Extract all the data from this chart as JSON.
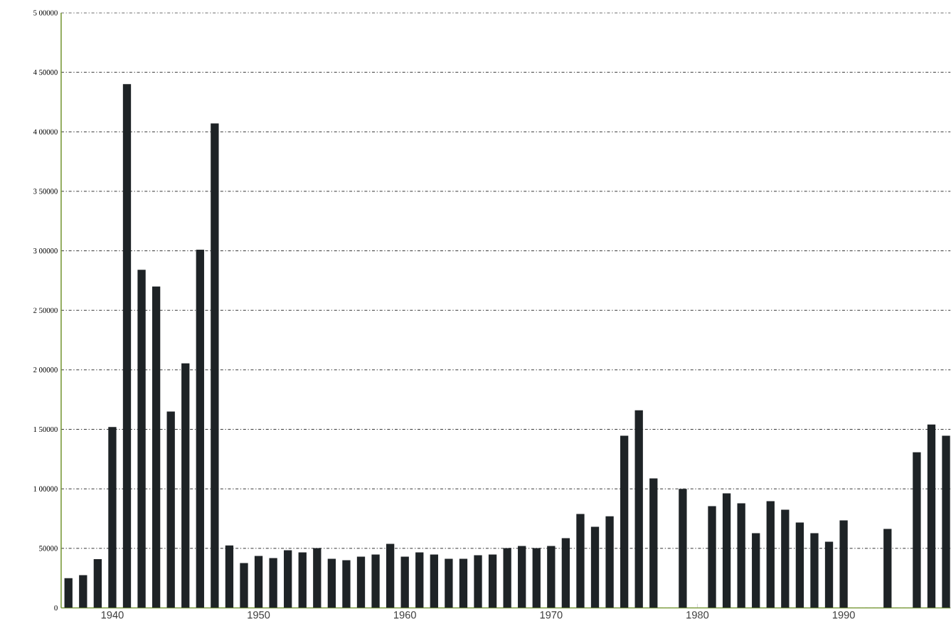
{
  "chart_data": {
    "type": "bar",
    "x": [
      1937,
      1938,
      1939,
      1940,
      1941,
      1942,
      1943,
      1944,
      1945,
      1946,
      1947,
      1948,
      1949,
      1950,
      1951,
      1952,
      1953,
      1954,
      1955,
      1956,
      1957,
      1958,
      1959,
      1960,
      1961,
      1962,
      1963,
      1964,
      1965,
      1966,
      1967,
      1968,
      1969,
      1970,
      1971,
      1972,
      1973,
      1974,
      1975,
      1976,
      1977,
      1978,
      1979,
      1980,
      1981,
      1982,
      1983,
      1984,
      1985,
      1986,
      1987,
      1988,
      1989,
      1990,
      1991,
      1992,
      1993,
      1994,
      1995,
      1996,
      1997
    ],
    "values": [
      25000,
      27500,
      41000,
      152000,
      440000,
      284000,
      270000,
      165000,
      205500,
      301000,
      407000,
      52500,
      37600,
      43600,
      41800,
      48400,
      46600,
      50200,
      41200,
      40000,
      43000,
      44800,
      53800,
      43000,
      46600,
      44800,
      41200,
      41200,
      44200,
      44800,
      50200,
      52000,
      50200,
      52000,
      58500,
      78900,
      68100,
      77000,
      144600,
      166000,
      108700,
      null,
      100000,
      null,
      85400,
      96200,
      87800,
      62700,
      89600,
      82400,
      71700,
      62700,
      55600,
      73500,
      null,
      null,
      66300,
      null,
      130800,
      154000,
      144600
    ],
    "color": "#1e2326",
    "xlim": [
      1936.5,
      1997.3
    ],
    "xticks": [
      1940,
      1950,
      1960,
      1970,
      1980,
      1990
    ],
    "ylim": [
      0,
      500000
    ],
    "yticks": [
      0,
      {
        "value": 50000,
        "label": "50000"
      },
      {
        "value": 100000,
        "label": "1 00000"
      },
      {
        "value": 150000,
        "label": "1 50000"
      },
      {
        "value": 200000,
        "label": "2 00000"
      },
      {
        "value": 250000,
        "label": "2 50000"
      },
      {
        "value": 300000,
        "label": "3 00000"
      },
      {
        "value": 350000,
        "label": "3 50000"
      },
      {
        "value": 400000,
        "label": "4 00000"
      },
      {
        "value": 450000,
        "label": "4 50000"
      },
      {
        "value": 500000,
        "label": "5 00000"
      }
    ],
    "grid": "y"
  }
}
